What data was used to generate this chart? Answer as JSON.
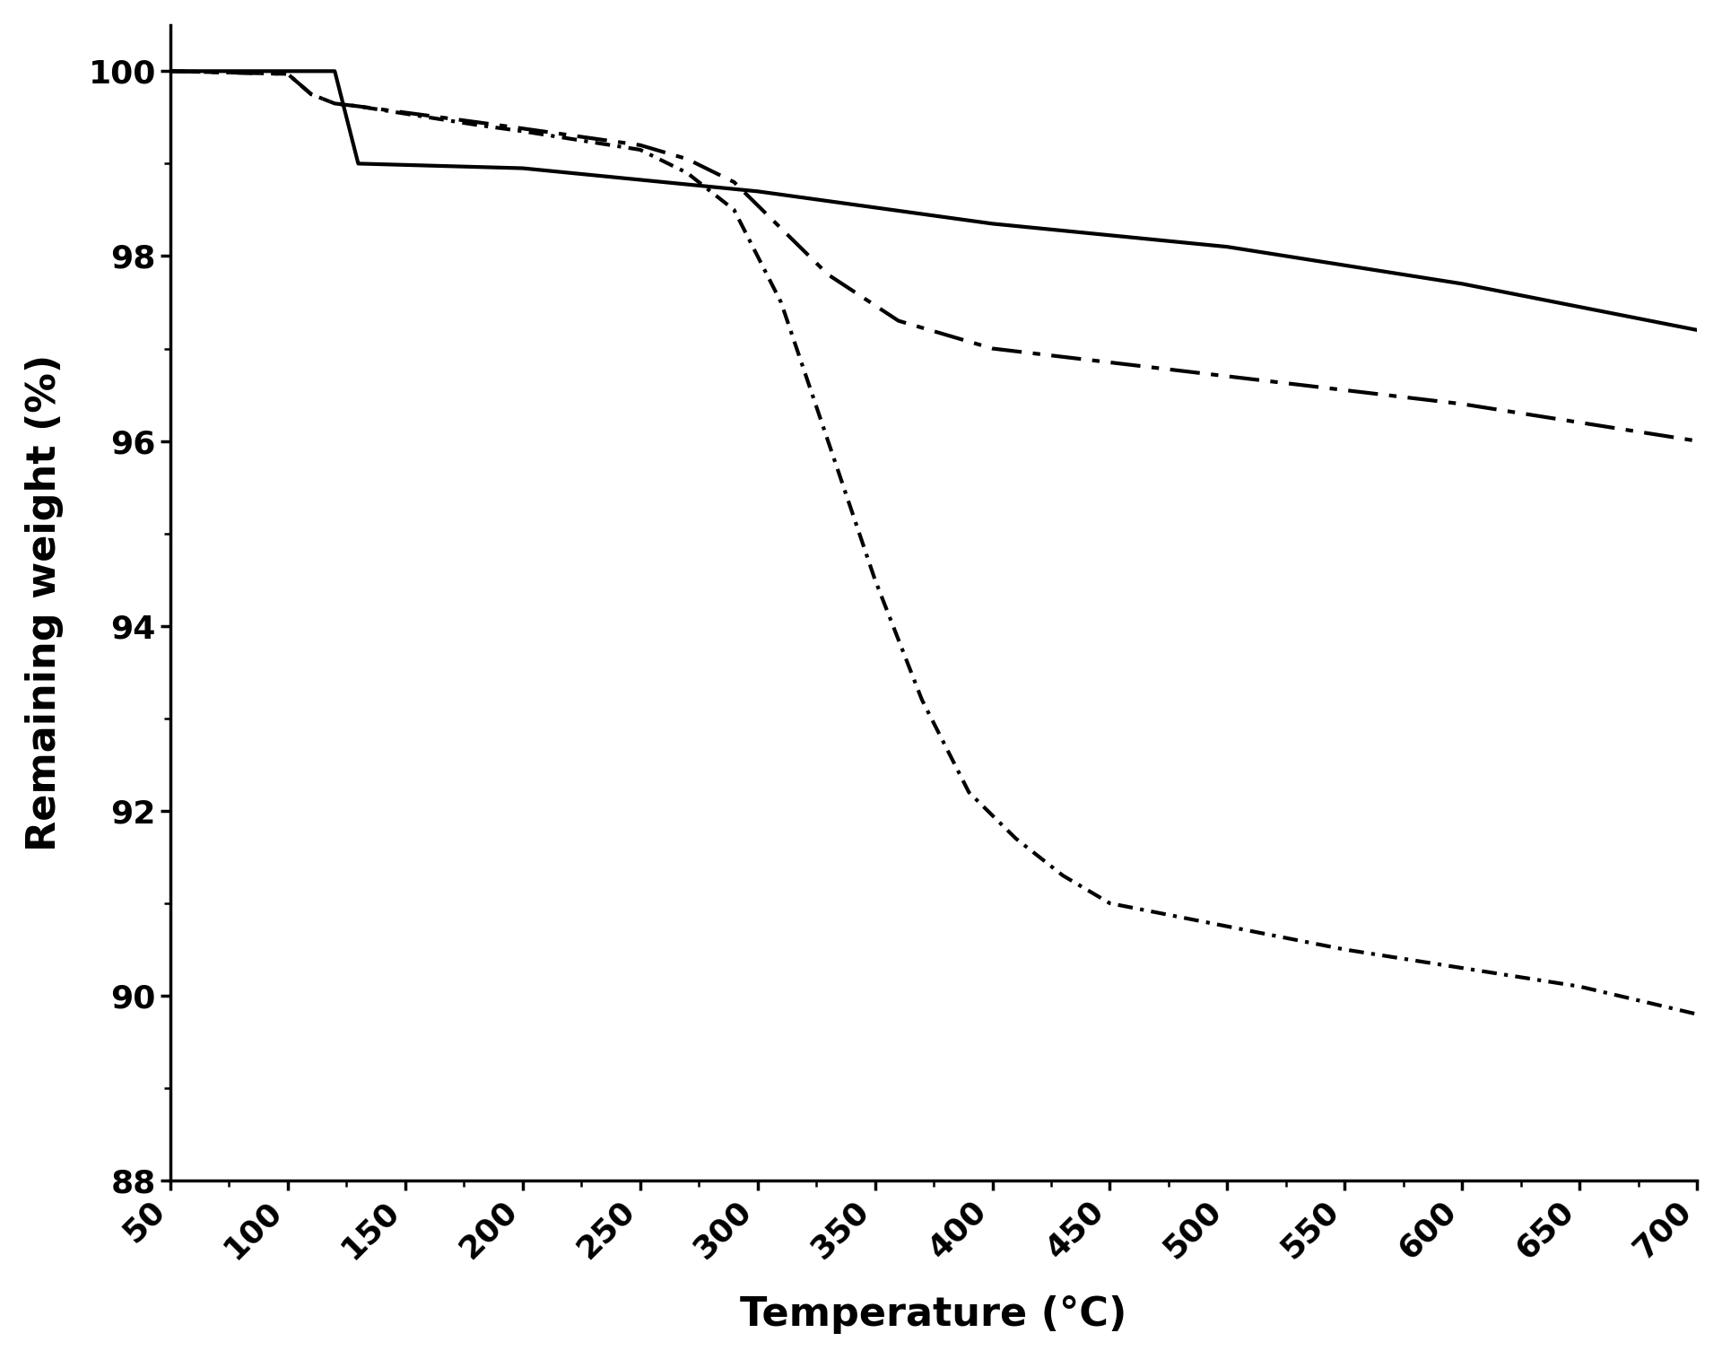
{
  "title": "",
  "xlabel": "Temperature (°C)",
  "ylabel": "Remaining weight (%)",
  "xlim": [
    50,
    700
  ],
  "ylim": [
    88,
    100.5
  ],
  "xticks": [
    50,
    100,
    150,
    200,
    250,
    300,
    350,
    400,
    450,
    500,
    550,
    600,
    650,
    700
  ],
  "yticks": [
    88,
    90,
    92,
    94,
    96,
    98,
    100
  ],
  "background_color": "#ffffff",
  "line_color": "#000000",
  "line1": {
    "x": [
      50,
      120,
      130,
      200,
      300,
      400,
      500,
      600,
      700
    ],
    "y": [
      100.0,
      100.0,
      99.0,
      98.95,
      98.7,
      98.35,
      98.1,
      97.7,
      97.2
    ],
    "style": "solid",
    "linewidth": 3.0
  },
  "line2": {
    "x": [
      50,
      100,
      110,
      120,
      130,
      180,
      200,
      250,
      270,
      290,
      310,
      330,
      360,
      400,
      450,
      500,
      550,
      600,
      650,
      700
    ],
    "y": [
      100.0,
      99.97,
      99.75,
      99.65,
      99.62,
      99.45,
      99.38,
      99.2,
      99.05,
      98.8,
      98.3,
      97.8,
      97.3,
      97.0,
      96.85,
      96.7,
      96.55,
      96.4,
      96.2,
      96.0
    ],
    "linewidth": 3.0,
    "dash_pattern": [
      8,
      3,
      2,
      3
    ]
  },
  "line3": {
    "x": [
      50,
      100,
      110,
      120,
      130,
      180,
      200,
      250,
      270,
      290,
      310,
      330,
      350,
      370,
      390,
      410,
      430,
      450,
      480,
      500,
      550,
      600,
      650,
      700
    ],
    "y": [
      100.0,
      99.97,
      99.75,
      99.65,
      99.62,
      99.42,
      99.35,
      99.15,
      98.9,
      98.5,
      97.5,
      96.0,
      94.5,
      93.2,
      92.2,
      91.7,
      91.3,
      91.0,
      90.85,
      90.75,
      90.5,
      90.3,
      90.1,
      89.8
    ],
    "linewidth": 3.0,
    "dash_pattern": [
      4,
      2,
      1,
      2
    ]
  },
  "tick_fontsize": 26,
  "label_fontsize": 32,
  "label_fontweight": "bold",
  "figsize": [
    19.2,
    15.15
  ],
  "dpi": 100
}
